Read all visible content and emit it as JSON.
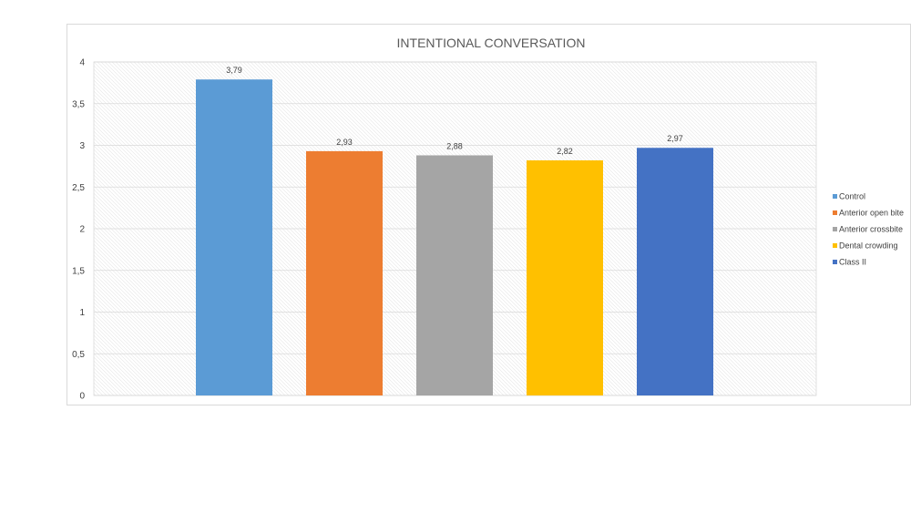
{
  "chart_data": {
    "type": "bar",
    "title": "INTENTIONAL CONVERSATION",
    "categories": [
      "Control",
      "Anterior open bite",
      "Anterior crossbite",
      "Dental crowding",
      "Class II"
    ],
    "values": [
      3.79,
      2.93,
      2.88,
      2.82,
      2.97
    ],
    "data_labels": [
      "3,79",
      "2,93",
      "2,88",
      "2,82",
      "2,97"
    ],
    "colors": [
      "#5b9bd5",
      "#ed7d31",
      "#a5a5a5",
      "#ffc000",
      "#4472c4"
    ],
    "ylim": [
      0,
      4
    ],
    "y_ticks": [
      0,
      0.5,
      1,
      1.5,
      2,
      2.5,
      3,
      3.5,
      4
    ],
    "y_tick_labels": [
      "0",
      "0,5",
      "1",
      "1,5",
      "2",
      "2,5",
      "3",
      "3,5",
      "4"
    ],
    "xlabel": "",
    "ylabel": "",
    "grid": true,
    "legend_position": "right"
  }
}
